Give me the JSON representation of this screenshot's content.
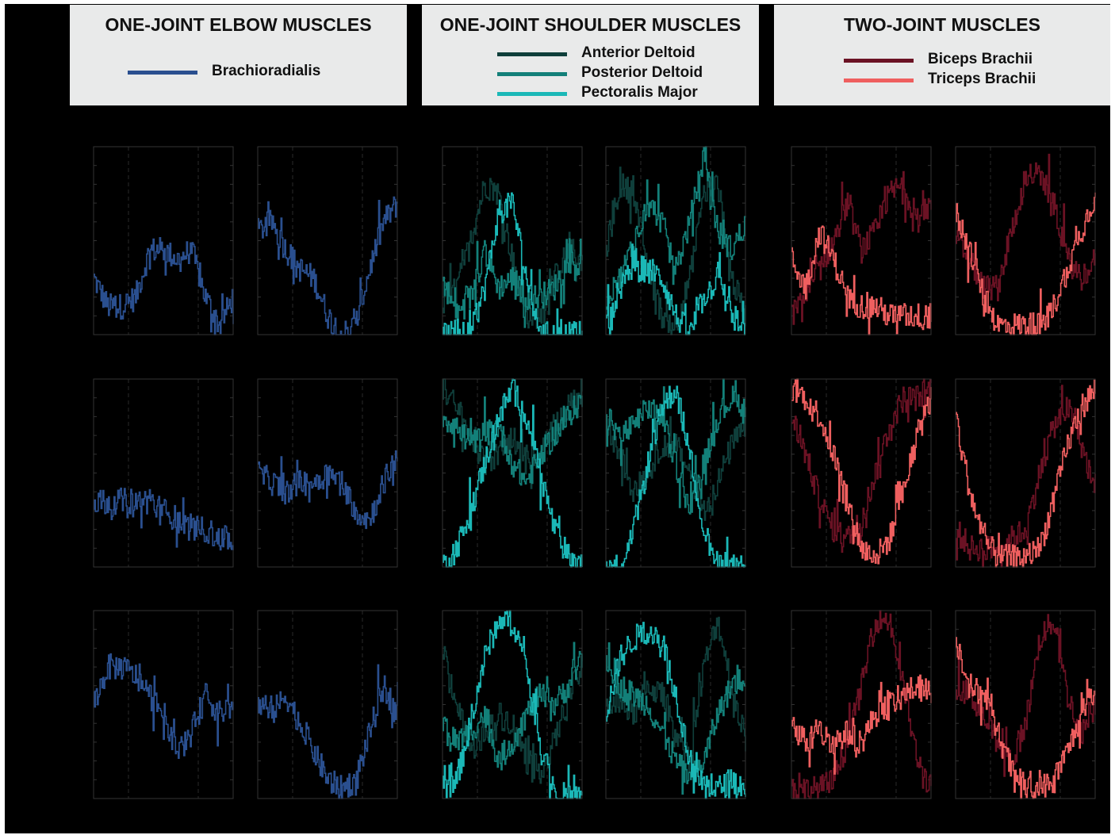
{
  "figure": {
    "groups": [
      {
        "id": "elbow",
        "title": "ONE-JOINT ELBOW MUSCLES",
        "legend": [
          {
            "label": "Brachioradialis",
            "color": "#2a4f8f"
          }
        ]
      },
      {
        "id": "shoulder",
        "title": "ONE-JOINT SHOULDER MUSCLES",
        "legend": [
          {
            "label": "Anterior Deltoid",
            "color": "#0f3f3b"
          },
          {
            "label": "Posterior Deltoid",
            "color": "#138079"
          },
          {
            "label": "Pectoralis Major",
            "color": "#1bb8b7"
          }
        ]
      },
      {
        "id": "twojoint",
        "title": "TWO-JOINT MUSCLES",
        "legend": [
          {
            "label": "Biceps Brachii",
            "color": "#6b1224"
          },
          {
            "label": "Triceps Brachii",
            "color": "#ef5f5f"
          }
        ]
      }
    ]
  },
  "chart_data": {
    "type": "line",
    "layout": "3 rows x 6 columns of small multiples, 2 columns per muscle group",
    "axis_frame_color": "#333333",
    "gridlines": "dashed vertical",
    "tick_labels": "none shown",
    "y_range": [
      0,
      1
    ],
    "x": [
      0,
      0.1,
      0.2,
      0.3,
      0.4,
      0.5,
      0.6,
      0.7,
      0.8,
      0.9,
      1.0
    ],
    "panels": [
      {
        "row": 1,
        "col": 1,
        "group": "elbow",
        "series": [
          {
            "muscle": "Brachioradialis",
            "values": [
              0.3,
              0.15,
              0.15,
              0.2,
              0.45,
              0.45,
              0.4,
              0.45,
              0.2,
              0.05,
              0.2
            ]
          }
        ]
      },
      {
        "row": 1,
        "col": 2,
        "group": "elbow",
        "series": [
          {
            "muscle": "Brachioradialis",
            "values": [
              0.55,
              0.6,
              0.45,
              0.35,
              0.3,
              0.1,
              0.0,
              0.05,
              0.35,
              0.6,
              0.7
            ]
          }
        ]
      },
      {
        "row": 1,
        "col": 3,
        "group": "shoulder",
        "series": [
          {
            "muscle": "Anterior Deltoid",
            "values": [
              0.15,
              0.25,
              0.5,
              0.8,
              0.75,
              0.4,
              0.1,
              0.1,
              0.3,
              0.45,
              0.4
            ]
          },
          {
            "muscle": "Posterior Deltoid",
            "values": [
              0.3,
              0.1,
              0.2,
              0.45,
              0.25,
              0.3,
              0.2,
              0.2,
              0.25,
              0.4,
              0.35
            ]
          },
          {
            "muscle": "Pectoralis Major",
            "values": [
              0.0,
              0.0,
              0.0,
              0.25,
              0.65,
              0.7,
              0.3,
              0.0,
              0.0,
              0.0,
              0.0
            ]
          }
        ]
      },
      {
        "row": 1,
        "col": 4,
        "group": "shoulder",
        "series": [
          {
            "muscle": "Anterior Deltoid",
            "values": [
              0.45,
              0.8,
              0.75,
              0.35,
              0.1,
              0.05,
              0.3,
              0.75,
              0.8,
              0.3,
              0.1
            ]
          },
          {
            "muscle": "Posterior Deltoid",
            "values": [
              0.2,
              0.3,
              0.5,
              0.7,
              0.6,
              0.35,
              0.6,
              0.95,
              0.55,
              0.45,
              0.6
            ]
          },
          {
            "muscle": "Pectoralis Major",
            "values": [
              0.05,
              0.25,
              0.35,
              0.35,
              0.3,
              0.1,
              0.0,
              0.2,
              0.3,
              0.1,
              0.0
            ]
          }
        ]
      },
      {
        "row": 1,
        "col": 5,
        "group": "twojoint",
        "series": [
          {
            "muscle": "Biceps Brachii",
            "values": [
              0.1,
              0.2,
              0.35,
              0.5,
              0.7,
              0.45,
              0.55,
              0.75,
              0.8,
              0.6,
              0.7
            ]
          },
          {
            "muscle": "Triceps Brachii",
            "values": [
              0.4,
              0.25,
              0.55,
              0.4,
              0.2,
              0.15,
              0.15,
              0.1,
              0.1,
              0.1,
              0.1
            ]
          }
        ]
      },
      {
        "row": 1,
        "col": 6,
        "group": "twojoint",
        "series": [
          {
            "muscle": "Biceps Brachii",
            "values": [
              0.5,
              0.4,
              0.25,
              0.25,
              0.55,
              0.85,
              0.85,
              0.7,
              0.4,
              0.3,
              0.4
            ]
          },
          {
            "muscle": "Triceps Brachii",
            "values": [
              0.65,
              0.45,
              0.2,
              0.05,
              0.05,
              0.05,
              0.05,
              0.15,
              0.35,
              0.55,
              0.75
            ]
          }
        ]
      },
      {
        "row": 2,
        "col": 1,
        "group": "elbow",
        "series": [
          {
            "muscle": "Brachioradialis",
            "values": [
              0.35,
              0.35,
              0.35,
              0.35,
              0.35,
              0.3,
              0.25,
              0.2,
              0.2,
              0.15,
              0.15
            ]
          }
        ]
      },
      {
        "row": 2,
        "col": 2,
        "group": "elbow",
        "series": [
          {
            "muscle": "Brachioradialis",
            "values": [
              0.5,
              0.45,
              0.4,
              0.45,
              0.45,
              0.5,
              0.45,
              0.3,
              0.25,
              0.45,
              0.6
            ]
          }
        ]
      },
      {
        "row": 2,
        "col": 3,
        "group": "shoulder",
        "series": [
          {
            "muscle": "Anterior Deltoid",
            "values": [
              0.95,
              0.85,
              0.7,
              0.55,
              0.6,
              0.7,
              0.55,
              0.6,
              0.75,
              0.85,
              0.95
            ]
          },
          {
            "muscle": "Posterior Deltoid",
            "values": [
              0.8,
              0.75,
              0.65,
              0.7,
              0.75,
              0.55,
              0.45,
              0.6,
              0.7,
              0.8,
              0.9
            ]
          },
          {
            "muscle": "Pectoralis Major",
            "values": [
              0.0,
              0.1,
              0.3,
              0.55,
              0.8,
              0.95,
              0.8,
              0.5,
              0.2,
              0.05,
              0.0
            ]
          }
        ]
      },
      {
        "row": 2,
        "col": 4,
        "group": "shoulder",
        "series": [
          {
            "muscle": "Anterior Deltoid",
            "values": [
              0.75,
              0.6,
              0.4,
              0.5,
              0.65,
              0.65,
              0.5,
              0.3,
              0.45,
              0.65,
              0.75
            ]
          },
          {
            "muscle": "Posterior Deltoid",
            "values": [
              0.8,
              0.7,
              0.75,
              0.85,
              0.8,
              0.55,
              0.3,
              0.55,
              0.8,
              0.9,
              0.85
            ]
          },
          {
            "muscle": "Pectoralis Major",
            "values": [
              0.0,
              0.0,
              0.2,
              0.55,
              0.85,
              0.95,
              0.6,
              0.2,
              0.0,
              0.0,
              0.0
            ]
          }
        ]
      },
      {
        "row": 2,
        "col": 5,
        "group": "twojoint",
        "series": [
          {
            "muscle": "Biceps Brachii",
            "values": [
              0.8,
              0.6,
              0.35,
              0.2,
              0.15,
              0.25,
              0.5,
              0.75,
              0.9,
              0.9,
              0.95
            ]
          },
          {
            "muscle": "Triceps Brachii",
            "values": [
              0.95,
              0.9,
              0.8,
              0.6,
              0.35,
              0.1,
              0.05,
              0.15,
              0.4,
              0.7,
              0.9
            ]
          }
        ]
      },
      {
        "row": 2,
        "col": 6,
        "group": "twojoint",
        "series": [
          {
            "muscle": "Biceps Brachii",
            "values": [
              0.2,
              0.1,
              0.1,
              0.1,
              0.15,
              0.2,
              0.5,
              0.75,
              0.85,
              0.65,
              0.4
            ]
          },
          {
            "muscle": "Triceps Brachii",
            "values": [
              0.8,
              0.4,
              0.15,
              0.05,
              0.05,
              0.05,
              0.1,
              0.35,
              0.65,
              0.85,
              0.95
            ]
          }
        ]
      },
      {
        "row": 3,
        "col": 1,
        "group": "elbow",
        "series": [
          {
            "muscle": "Brachioradialis",
            "values": [
              0.5,
              0.7,
              0.7,
              0.65,
              0.55,
              0.45,
              0.25,
              0.35,
              0.55,
              0.45,
              0.5
            ]
          }
        ]
      },
      {
        "row": 3,
        "col": 2,
        "group": "elbow",
        "series": [
          {
            "muscle": "Brachioradialis",
            "values": [
              0.5,
              0.45,
              0.55,
              0.4,
              0.25,
              0.1,
              0.05,
              0.1,
              0.35,
              0.6,
              0.45
            ]
          }
        ]
      },
      {
        "row": 3,
        "col": 3,
        "group": "shoulder",
        "series": [
          {
            "muscle": "Anterior Deltoid",
            "values": [
              0.8,
              0.5,
              0.25,
              0.35,
              0.45,
              0.4,
              0.2,
              0.15,
              0.3,
              0.55,
              0.7
            ]
          },
          {
            "muscle": "Posterior Deltoid",
            "values": [
              0.4,
              0.3,
              0.35,
              0.45,
              0.2,
              0.3,
              0.45,
              0.55,
              0.5,
              0.6,
              0.75
            ]
          },
          {
            "muscle": "Pectoralis Major",
            "values": [
              0.05,
              0.1,
              0.4,
              0.75,
              0.95,
              0.95,
              0.7,
              0.3,
              0.05,
              0.0,
              0.0
            ]
          }
        ]
      },
      {
        "row": 3,
        "col": 4,
        "group": "shoulder",
        "series": [
          {
            "muscle": "Anterior Deltoid",
            "values": [
              0.5,
              0.5,
              0.45,
              0.6,
              0.55,
              0.35,
              0.2,
              0.7,
              0.95,
              0.6,
              0.3
            ]
          },
          {
            "muscle": "Posterior Deltoid",
            "values": [
              0.75,
              0.6,
              0.55,
              0.5,
              0.35,
              0.2,
              0.1,
              0.2,
              0.45,
              0.6,
              0.65
            ]
          },
          {
            "muscle": "Pectoralis Major",
            "values": [
              0.45,
              0.75,
              0.85,
              0.9,
              0.85,
              0.55,
              0.2,
              0.05,
              0.05,
              0.1,
              0.05
            ]
          }
        ]
      },
      {
        "row": 3,
        "col": 5,
        "group": "twojoint",
        "series": [
          {
            "muscle": "Biceps Brachii",
            "values": [
              0.05,
              0.05,
              0.05,
              0.1,
              0.3,
              0.6,
              0.95,
              0.95,
              0.6,
              0.2,
              0.05
            ]
          },
          {
            "muscle": "Triceps Brachii",
            "values": [
              0.4,
              0.3,
              0.35,
              0.3,
              0.35,
              0.3,
              0.45,
              0.5,
              0.55,
              0.6,
              0.55
            ]
          }
        ]
      },
      {
        "row": 3,
        "col": 6,
        "group": "twojoint",
        "series": [
          {
            "muscle": "Biceps Brachii",
            "values": [
              0.6,
              0.55,
              0.45,
              0.3,
              0.2,
              0.4,
              0.85,
              0.95,
              0.55,
              0.35,
              0.5
            ]
          },
          {
            "muscle": "Triceps Brachii",
            "values": [
              0.85,
              0.6,
              0.55,
              0.35,
              0.15,
              0.05,
              0.05,
              0.1,
              0.25,
              0.45,
              0.55
            ]
          }
        ]
      }
    ]
  }
}
